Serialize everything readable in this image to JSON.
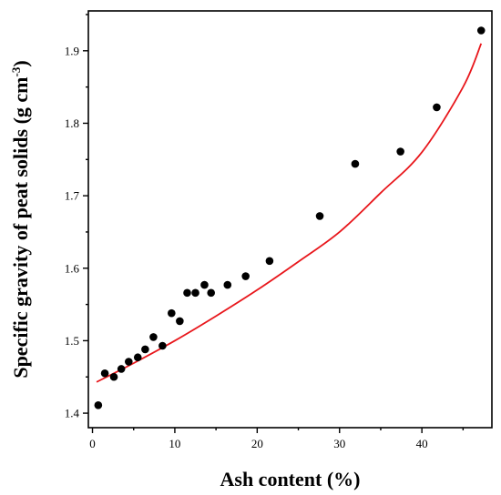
{
  "chart_data": {
    "type": "scatter",
    "title": "",
    "xlabel": "Ash content (%)",
    "ylabel_main": "Specific gravity of peat solids (g cm",
    "ylabel_sup": "-3",
    "ylabel_close": ")",
    "xlim": [
      -0.5,
      48.5
    ],
    "ylim": [
      1.38,
      1.955
    ],
    "xticks": [
      0,
      10,
      20,
      30,
      40
    ],
    "yticks": [
      1.4,
      1.5,
      1.6,
      1.7,
      1.8,
      1.9
    ],
    "xtick_labels": [
      "0",
      "10",
      "20",
      "30",
      "40"
    ],
    "ytick_labels": [
      "1.4",
      "1.5",
      "1.6",
      "1.7",
      "1.8",
      "1.9"
    ],
    "grid": false,
    "series": [
      {
        "kind": "points",
        "color": "#000000",
        "x": [
          0.7,
          1.5,
          2.6,
          3.5,
          4.4,
          5.5,
          6.4,
          7.4,
          8.5,
          9.6,
          10.6,
          11.5,
          12.5,
          13.6,
          14.4,
          16.4,
          18.6,
          21.5,
          27.6,
          31.9,
          37.4,
          41.8,
          47.2
        ],
        "y": [
          1.411,
          1.455,
          1.45,
          1.461,
          1.471,
          1.477,
          1.488,
          1.505,
          1.493,
          1.538,
          1.527,
          1.566,
          1.566,
          1.577,
          1.566,
          1.577,
          1.589,
          1.61,
          1.672,
          1.744,
          1.761,
          1.822,
          1.928
        ]
      },
      {
        "kind": "fit",
        "color": "#e8161b",
        "x": [
          0.5,
          5,
          10,
          15,
          20,
          25,
          30,
          35,
          40,
          45,
          47.2
        ],
        "y": [
          1.443,
          1.469,
          1.5,
          1.534,
          1.57,
          1.609,
          1.65,
          1.704,
          1.76,
          1.85,
          1.91
        ]
      }
    ]
  }
}
